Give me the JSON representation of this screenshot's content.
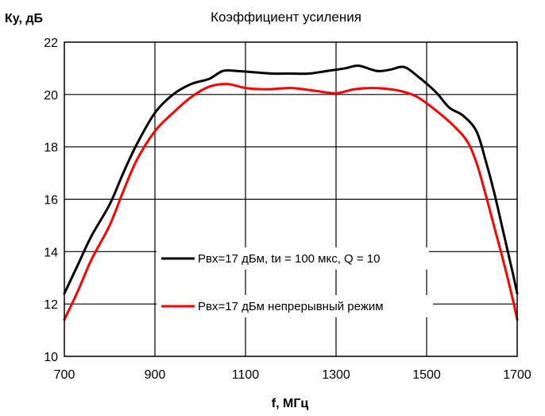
{
  "chart_data": {
    "type": "line",
    "title": "Коэффициент усиления",
    "xlabel": "f, МГц",
    "ylabel": "Ку, дБ",
    "xlim": [
      700,
      1700
    ],
    "ylim": [
      10,
      22
    ],
    "xticks": [
      700,
      900,
      1100,
      1300,
      1500,
      1700
    ],
    "yticks": [
      10,
      12,
      14,
      16,
      18,
      20,
      22
    ],
    "grid": true,
    "legend_position": "center-bottom",
    "series": [
      {
        "name": "Рвх=17 дБм, tи = 100 мкс, Q = 10",
        "color": "#000000",
        "points": [
          [
            700,
            12.4
          ],
          [
            730,
            13.5
          ],
          [
            760,
            14.6
          ],
          [
            800,
            15.8
          ],
          [
            830,
            17.0
          ],
          [
            860,
            18.1
          ],
          [
            900,
            19.3
          ],
          [
            940,
            20.0
          ],
          [
            980,
            20.4
          ],
          [
            1020,
            20.6
          ],
          [
            1050,
            20.9
          ],
          [
            1080,
            20.9
          ],
          [
            1120,
            20.85
          ],
          [
            1160,
            20.8
          ],
          [
            1200,
            20.8
          ],
          [
            1240,
            20.8
          ],
          [
            1280,
            20.9
          ],
          [
            1320,
            21.0
          ],
          [
            1350,
            21.1
          ],
          [
            1390,
            20.9
          ],
          [
            1420,
            20.95
          ],
          [
            1450,
            21.05
          ],
          [
            1480,
            20.7
          ],
          [
            1520,
            20.1
          ],
          [
            1550,
            19.5
          ],
          [
            1580,
            19.2
          ],
          [
            1610,
            18.6
          ],
          [
            1630,
            17.5
          ],
          [
            1650,
            16.2
          ],
          [
            1670,
            14.7
          ],
          [
            1690,
            13.2
          ],
          [
            1700,
            12.4
          ]
        ]
      },
      {
        "name": "Рвх=17 дБм непрерывный режим",
        "color": "#ff0000",
        "points": [
          [
            700,
            11.4
          ],
          [
            730,
            12.5
          ],
          [
            760,
            13.7
          ],
          [
            800,
            15.0
          ],
          [
            830,
            16.3
          ],
          [
            860,
            17.5
          ],
          [
            900,
            18.6
          ],
          [
            940,
            19.3
          ],
          [
            980,
            19.9
          ],
          [
            1020,
            20.3
          ],
          [
            1060,
            20.4
          ],
          [
            1100,
            20.25
          ],
          [
            1150,
            20.2
          ],
          [
            1200,
            20.25
          ],
          [
            1250,
            20.15
          ],
          [
            1300,
            20.05
          ],
          [
            1340,
            20.2
          ],
          [
            1380,
            20.25
          ],
          [
            1420,
            20.2
          ],
          [
            1450,
            20.1
          ],
          [
            1480,
            19.9
          ],
          [
            1520,
            19.4
          ],
          [
            1560,
            18.8
          ],
          [
            1590,
            18.2
          ],
          [
            1610,
            17.4
          ],
          [
            1630,
            16.2
          ],
          [
            1650,
            14.9
          ],
          [
            1670,
            13.6
          ],
          [
            1690,
            12.2
          ],
          [
            1700,
            11.4
          ]
        ]
      }
    ]
  }
}
